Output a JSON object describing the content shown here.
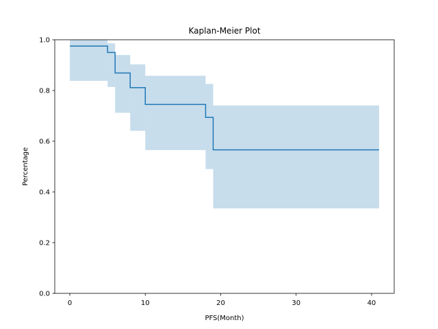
{
  "chart_data": {
    "type": "line",
    "subtype": "kaplan-meier-step",
    "title": "Kaplan-Meier Plot",
    "xlabel": "PFS(Month)",
    "ylabel": "Percentage",
    "xlim": [
      -2,
      43
    ],
    "ylim": [
      0.0,
      1.0
    ],
    "x_ticks": [
      0,
      10,
      20,
      30,
      40
    ],
    "y_ticks": [
      0.0,
      0.2,
      0.4,
      0.6,
      0.8,
      1.0
    ],
    "x_tick_labels": [
      "0",
      "10",
      "20",
      "30",
      "40"
    ],
    "y_tick_labels": [
      "0.0",
      "0.2",
      "0.4",
      "0.6",
      "0.8",
      "1.0"
    ],
    "grid": false,
    "series": [
      {
        "x": [
          0,
          5,
          6,
          8,
          10,
          18,
          19,
          41
        ],
        "y": [
          0.975,
          0.95,
          0.869,
          0.811,
          0.745,
          0.694,
          0.566,
          0.566
        ],
        "upper": [
          1.0,
          0.986,
          0.94,
          0.903,
          0.858,
          0.826,
          0.741,
          0.741
        ],
        "lower": [
          0.838,
          0.814,
          0.712,
          0.641,
          0.565,
          0.49,
          0.335,
          0.335
        ]
      }
    ],
    "colors": {
      "line": "#1f77b4",
      "band": "#1f77b4",
      "band_opacity": 0.25,
      "axes": "#000000"
    }
  }
}
